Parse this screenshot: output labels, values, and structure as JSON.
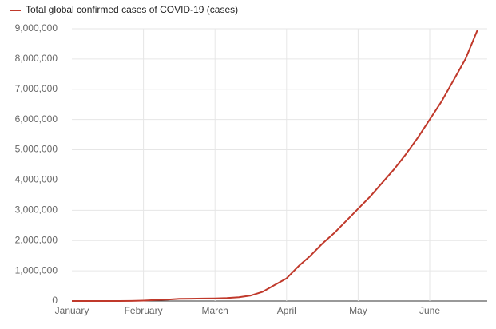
{
  "chart_data": {
    "type": "line",
    "categories": [
      "January",
      null,
      null,
      null,
      null,
      null,
      "February",
      null,
      null,
      null,
      null,
      null,
      "March",
      null,
      null,
      null,
      null,
      null,
      "April",
      null,
      null,
      null,
      null,
      null,
      "May",
      null,
      null,
      null,
      null,
      null,
      "June",
      null,
      null,
      null,
      null
    ],
    "series": [
      {
        "name": "Total global confirmed cases of COVID-19 (cases)",
        "color": "#c0392b",
        "values": [
          0,
          0,
          41,
          45,
          300,
          2000,
          12000,
          31000,
          45000,
          71000,
          77000,
          81000,
          88000,
          101000,
          126000,
          182000,
          305000,
          530000,
          750000,
          1150000,
          1500000,
          1900000,
          2250000,
          2650000,
          3050000,
          3450000,
          3900000,
          4350000,
          4850000,
          5400000,
          6000000,
          6600000,
          7300000,
          8000000,
          8950000
        ]
      }
    ],
    "ylim": [
      0,
      9000000
    ],
    "yticks": [
      0,
      {
        "value": 1000000,
        "label": "1,000,000"
      },
      {
        "value": 2000000,
        "label": "2,000,000"
      },
      {
        "value": 3000000,
        "label": "3,000,000"
      },
      {
        "value": 4000000,
        "label": "4,000,000"
      },
      {
        "value": 5000000,
        "label": "5,000,000"
      },
      {
        "value": 6000000,
        "label": "6,000,000"
      },
      {
        "value": 7000000,
        "label": "7,000,000"
      },
      {
        "value": 8000000,
        "label": "8,000,000"
      },
      {
        "value": 9000000,
        "label": "9,000,000"
      }
    ],
    "grid": true,
    "legend": "top"
  }
}
